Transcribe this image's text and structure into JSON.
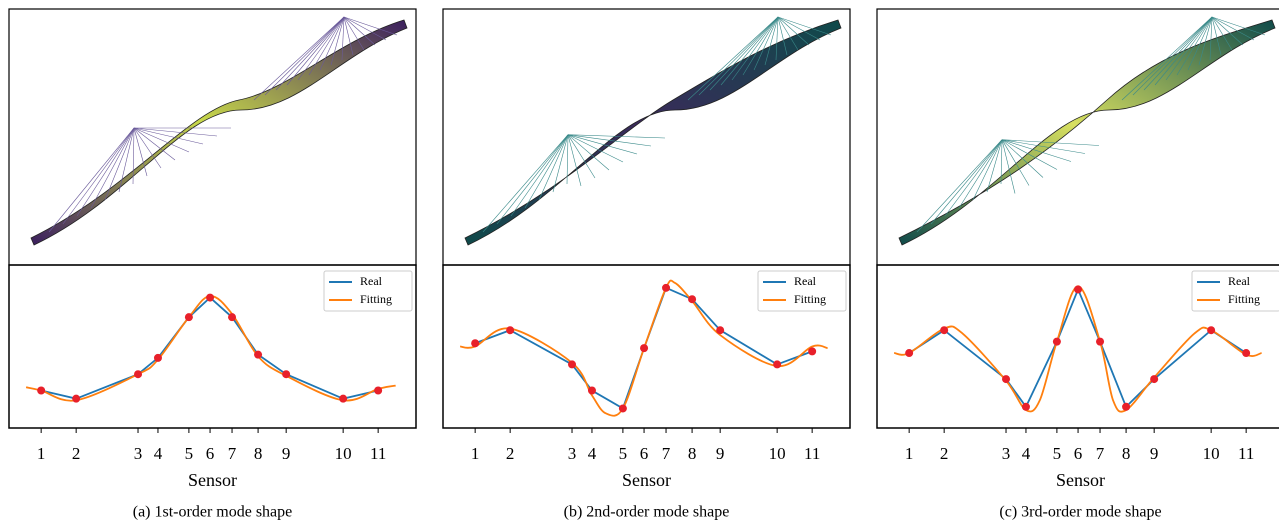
{
  "chart_data": [
    {
      "type": "line",
      "caption": "(a) 1st-order mode shape",
      "xlabel": "Sensor",
      "xlim": [
        0,
        100
      ],
      "ylim": [
        0,
        1
      ],
      "xticks": [
        {
          "value": 7.9,
          "label": "1"
        },
        {
          "value": 16.5,
          "label": "2"
        },
        {
          "value": 31.7,
          "label": "3"
        },
        {
          "value": 36.6,
          "label": "4"
        },
        {
          "value": 44.2,
          "label": "5"
        },
        {
          "value": 49.4,
          "label": "6"
        },
        {
          "value": 54.8,
          "label": "7"
        },
        {
          "value": 61.2,
          "label": "8"
        },
        {
          "value": 68.1,
          "label": "9"
        },
        {
          "value": 82.1,
          "label": "10"
        },
        {
          "value": 90.7,
          "label": "11"
        }
      ],
      "legend": "upper right",
      "series": [
        {
          "name": "Real",
          "color": "#1f77b4",
          "marker_color": "#e8202a",
          "x": [
            7.9,
            16.5,
            31.7,
            36.6,
            44.2,
            49.4,
            54.8,
            61.2,
            68.1,
            82.1,
            90.7
          ],
          "values": [
            0.23,
            0.18,
            0.33,
            0.43,
            0.68,
            0.8,
            0.68,
            0.45,
            0.33,
            0.18,
            0.23
          ]
        },
        {
          "name": "Fitting",
          "color": "#ff7f0e",
          "smooth": true,
          "x": [
            4.2,
            7.9,
            16.5,
            31.7,
            36.6,
            44.2,
            49.4,
            54.8,
            61.2,
            68.1,
            82.1,
            90.7,
            95
          ],
          "values": [
            0.25,
            0.23,
            0.17,
            0.33,
            0.42,
            0.68,
            0.81,
            0.7,
            0.44,
            0.32,
            0.17,
            0.24,
            0.26
          ]
        }
      ]
    },
    {
      "type": "line",
      "caption": "(b) 2nd-order mode shape",
      "xlabel": "Sensor",
      "xlim": [
        0,
        100
      ],
      "ylim": [
        0,
        1
      ],
      "xticks": [
        {
          "value": 7.9,
          "label": "1"
        },
        {
          "value": 16.5,
          "label": "2"
        },
        {
          "value": 31.7,
          "label": "3"
        },
        {
          "value": 36.6,
          "label": "4"
        },
        {
          "value": 44.2,
          "label": "5"
        },
        {
          "value": 49.4,
          "label": "6"
        },
        {
          "value": 54.8,
          "label": "7"
        },
        {
          "value": 61.2,
          "label": "8"
        },
        {
          "value": 68.1,
          "label": "9"
        },
        {
          "value": 82.1,
          "label": "10"
        },
        {
          "value": 90.7,
          "label": "11"
        }
      ],
      "legend": "upper right",
      "series": [
        {
          "name": "Real",
          "color": "#1f77b4",
          "marker_color": "#e8202a",
          "x": [
            7.9,
            16.5,
            31.7,
            36.6,
            44.2,
            49.4,
            54.8,
            61.2,
            68.1,
            82.1,
            90.7
          ],
          "values": [
            0.52,
            0.6,
            0.39,
            0.23,
            0.12,
            0.49,
            0.86,
            0.79,
            0.6,
            0.39,
            0.47
          ]
        },
        {
          "name": "Fitting",
          "color": "#ff7f0e",
          "smooth": true,
          "x": [
            4.2,
            7.9,
            16.5,
            31.7,
            36.6,
            40,
            44.2,
            49.4,
            54.8,
            57,
            61.2,
            68.1,
            82.1,
            90.7,
            94.5
          ],
          "values": [
            0.5,
            0.5,
            0.61,
            0.4,
            0.2,
            0.09,
            0.12,
            0.49,
            0.86,
            0.89,
            0.78,
            0.57,
            0.38,
            0.5,
            0.49
          ]
        }
      ]
    },
    {
      "type": "line",
      "caption": "(c) 3rd-order mode shape",
      "xlabel": "Sensor",
      "xlim": [
        0,
        100
      ],
      "ylim": [
        0,
        1
      ],
      "xticks": [
        {
          "value": 7.9,
          "label": "1"
        },
        {
          "value": 16.5,
          "label": "2"
        },
        {
          "value": 31.7,
          "label": "3"
        },
        {
          "value": 36.6,
          "label": "4"
        },
        {
          "value": 44.2,
          "label": "5"
        },
        {
          "value": 49.4,
          "label": "6"
        },
        {
          "value": 54.8,
          "label": "7"
        },
        {
          "value": 61.2,
          "label": "8"
        },
        {
          "value": 68.1,
          "label": "9"
        },
        {
          "value": 82.1,
          "label": "10"
        },
        {
          "value": 90.7,
          "label": "11"
        }
      ],
      "legend": "upper right",
      "series": [
        {
          "name": "Real",
          "color": "#1f77b4",
          "marker_color": "#e8202a",
          "x": [
            7.9,
            16.5,
            31.7,
            36.6,
            44.2,
            49.4,
            54.8,
            61.2,
            68.1,
            82.1,
            90.7
          ],
          "values": [
            0.46,
            0.6,
            0.3,
            0.13,
            0.53,
            0.85,
            0.53,
            0.13,
            0.3,
            0.6,
            0.46
          ]
        },
        {
          "name": "Fitting",
          "color": "#ff7f0e",
          "smooth": true,
          "x": [
            4.2,
            7.9,
            16.5,
            21,
            31.7,
            36.6,
            40,
            44.2,
            49.4,
            54.8,
            58,
            61.2,
            68.1,
            78,
            82.1,
            90.7,
            94.5
          ],
          "values": [
            0.46,
            0.46,
            0.61,
            0.58,
            0.29,
            0.11,
            0.17,
            0.53,
            0.87,
            0.53,
            0.17,
            0.11,
            0.31,
            0.58,
            0.6,
            0.45,
            0.46
          ]
        }
      ]
    }
  ]
}
